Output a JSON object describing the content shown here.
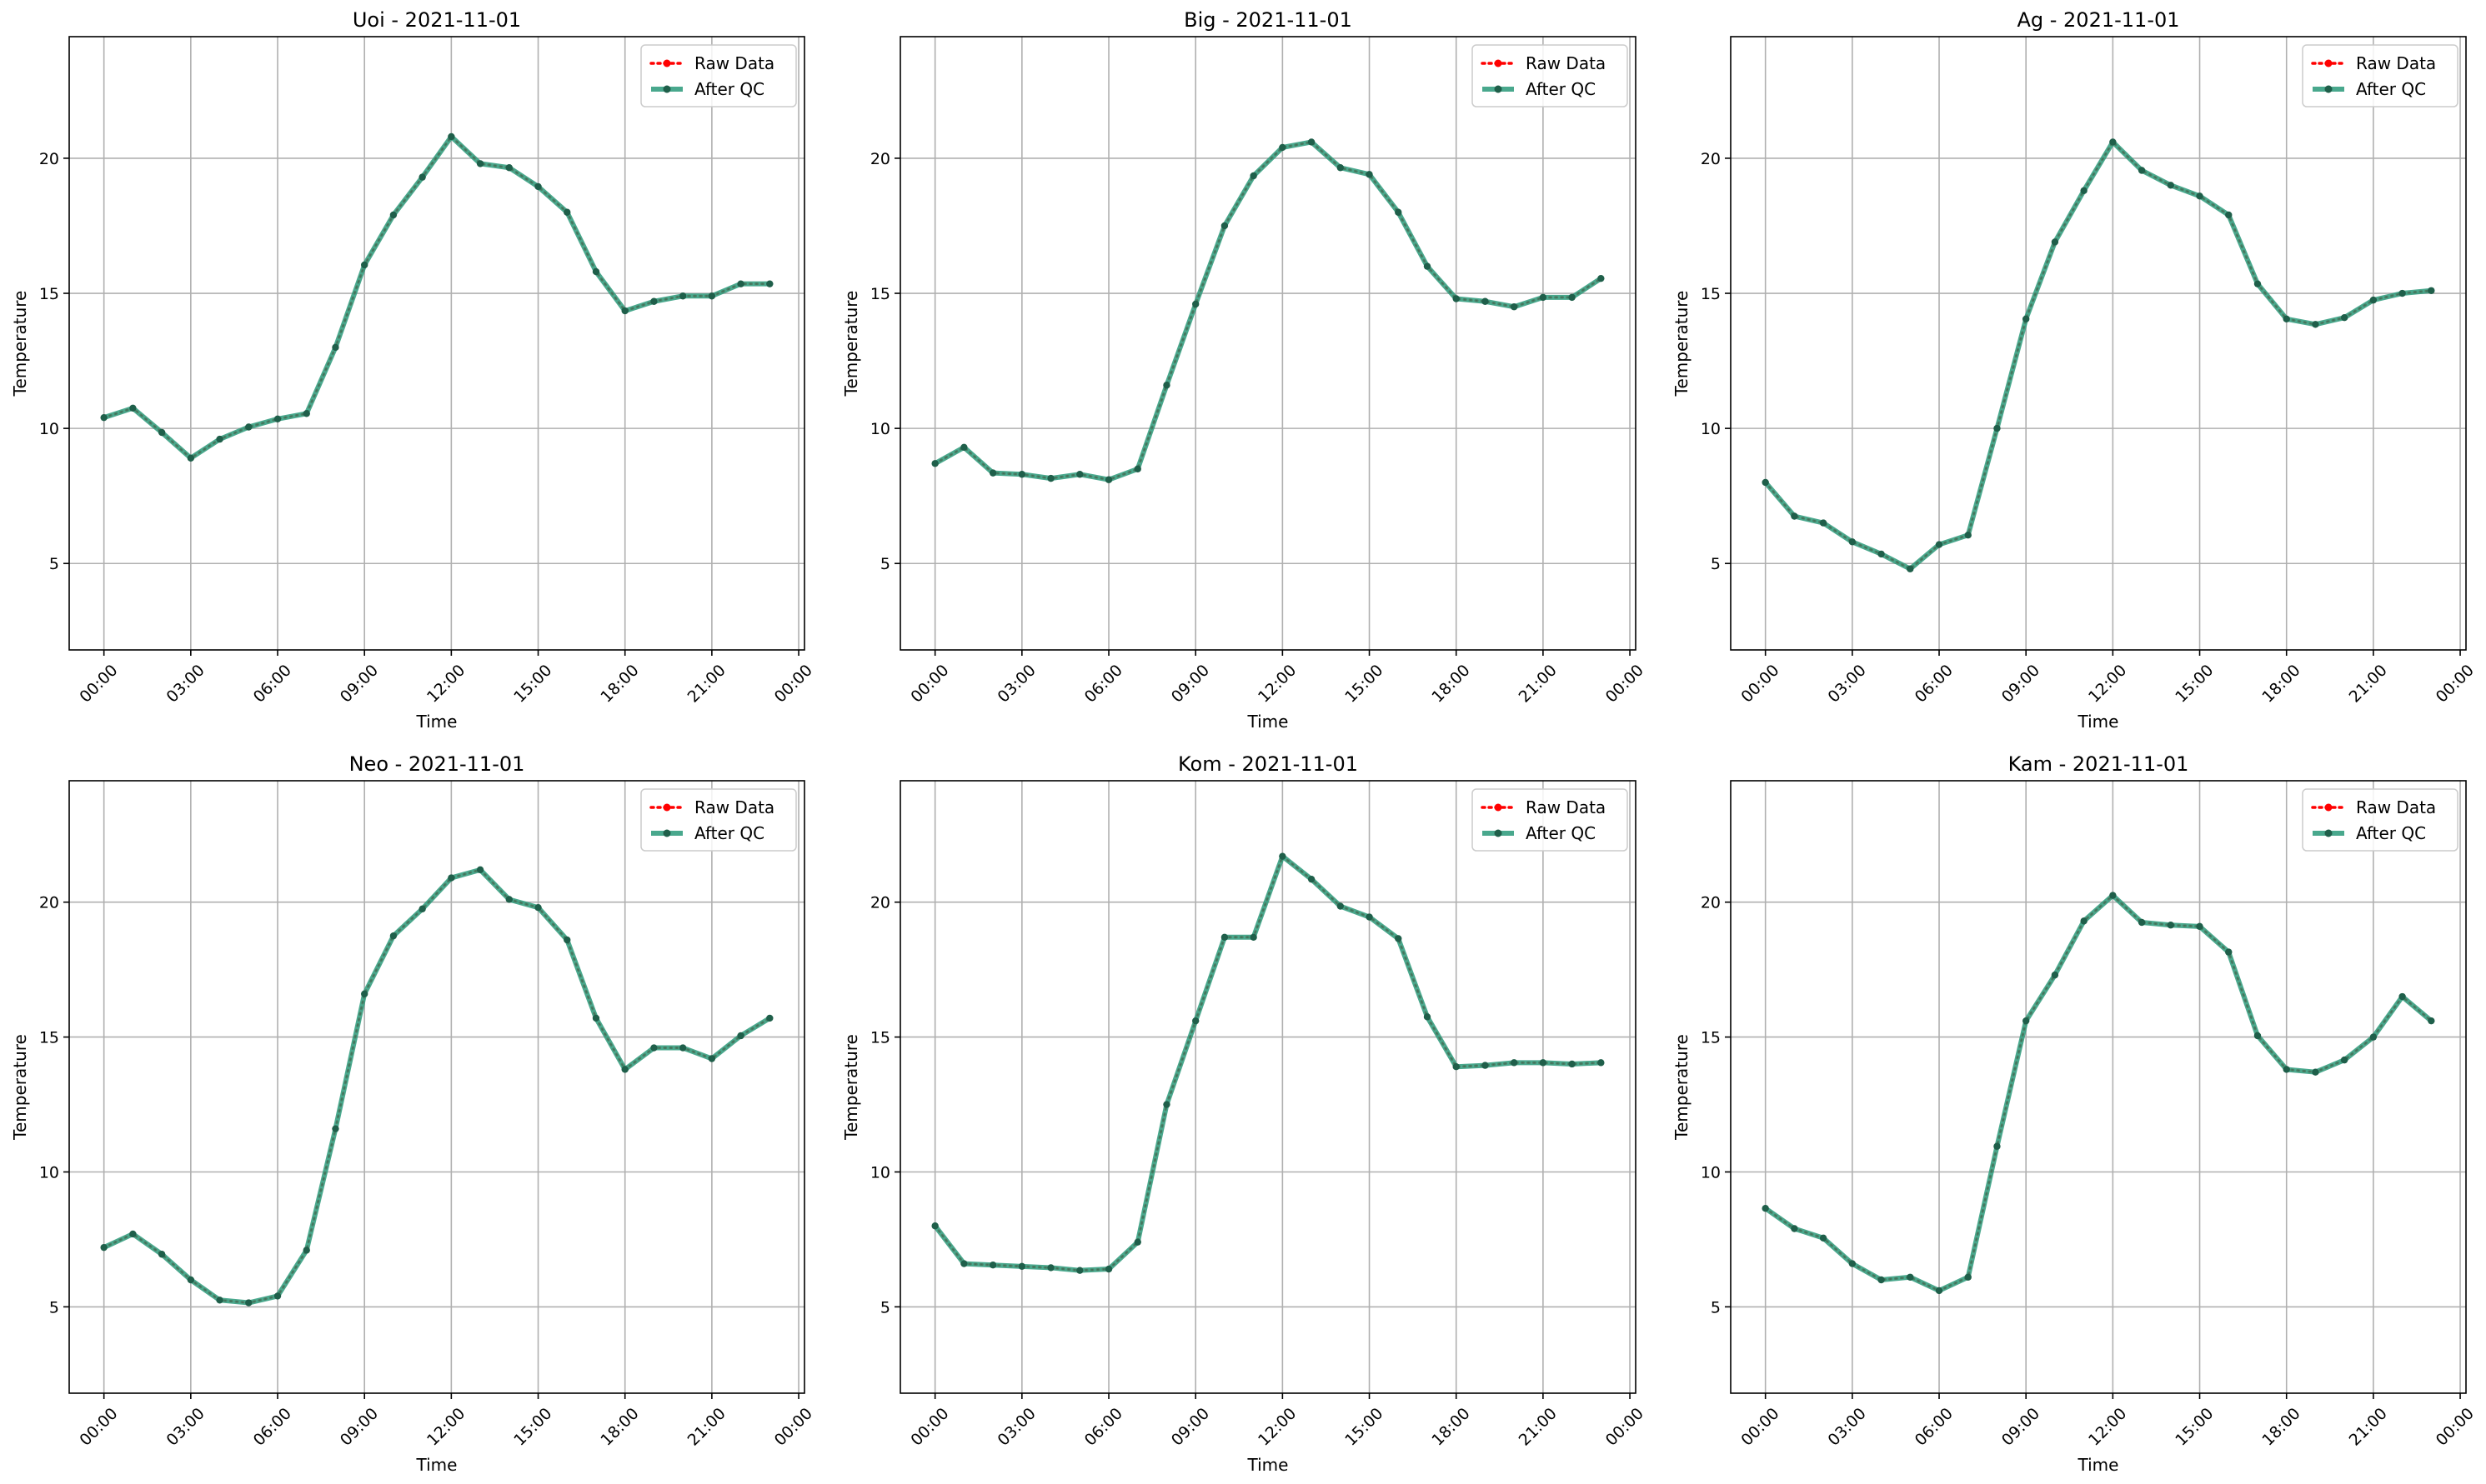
{
  "figure": {
    "colors": {
      "raw": "#ff0000",
      "qc": "#2a9a7a",
      "marker": "#1f5f4a",
      "grid": "#b0b0b0"
    }
  },
  "chart_data": [
    {
      "type": "line",
      "title": "Uoi - 2021-11-01",
      "xlabel": "Time",
      "ylabel": "Temperature",
      "xticks": [
        "00:00",
        "03:00",
        "06:00",
        "09:00",
        "12:00",
        "15:00",
        "18:00",
        "21:00",
        "00:00"
      ],
      "yticks": [
        5,
        10,
        15,
        20
      ],
      "ylim": [
        1.8,
        24.5
      ],
      "xlim": [
        -1.2,
        24.2
      ],
      "grid": true,
      "legend_position": "top-right",
      "legend": [
        "Raw Data",
        "After QC"
      ],
      "x": [
        0,
        1,
        2,
        3,
        4,
        5,
        6,
        7,
        8,
        9,
        10,
        11,
        12,
        13,
        14,
        15,
        16,
        17,
        18,
        19,
        20,
        21,
        22,
        23
      ],
      "series": [
        {
          "name": "Raw Data",
          "values": [
            10.4,
            10.75,
            9.85,
            8.9,
            9.6,
            10.05,
            10.35,
            10.55,
            13.0,
            16.05,
            17.9,
            19.3,
            20.8,
            19.8,
            19.65,
            18.95,
            18.0,
            15.8,
            14.35,
            14.7,
            14.9,
            14.9,
            15.35,
            15.35
          ]
        },
        {
          "name": "After QC",
          "values": [
            10.4,
            10.75,
            9.85,
            8.9,
            9.6,
            10.05,
            10.35,
            10.55,
            13.0,
            16.05,
            17.9,
            19.3,
            20.8,
            19.8,
            19.65,
            18.95,
            18.0,
            15.8,
            14.35,
            14.7,
            14.9,
            14.9,
            15.35,
            15.35
          ]
        }
      ]
    },
    {
      "type": "line",
      "title": "Big - 2021-11-01",
      "xlabel": "Time",
      "ylabel": "Temperature",
      "xticks": [
        "00:00",
        "03:00",
        "06:00",
        "09:00",
        "12:00",
        "15:00",
        "18:00",
        "21:00",
        "00:00"
      ],
      "yticks": [
        5,
        10,
        15,
        20
      ],
      "ylim": [
        1.8,
        24.5
      ],
      "xlim": [
        -1.2,
        24.2
      ],
      "grid": true,
      "legend_position": "top-right",
      "legend": [
        "Raw Data",
        "After QC"
      ],
      "x": [
        0,
        1,
        2,
        3,
        4,
        5,
        6,
        7,
        8,
        9,
        10,
        11,
        12,
        13,
        14,
        15,
        16,
        17,
        18,
        19,
        20,
        21,
        22,
        23
      ],
      "series": [
        {
          "name": "Raw Data",
          "values": [
            8.7,
            9.3,
            8.35,
            8.3,
            8.15,
            8.3,
            8.1,
            8.5,
            11.6,
            14.6,
            17.5,
            19.35,
            20.4,
            20.6,
            19.65,
            19.4,
            18.0,
            16.0,
            14.8,
            14.7,
            14.5,
            14.85,
            14.85,
            15.55
          ]
        },
        {
          "name": "After QC",
          "values": [
            8.7,
            9.3,
            8.35,
            8.3,
            8.15,
            8.3,
            8.1,
            8.5,
            11.6,
            14.6,
            17.5,
            19.35,
            20.4,
            20.6,
            19.65,
            19.4,
            18.0,
            16.0,
            14.8,
            14.7,
            14.5,
            14.85,
            14.85,
            15.55
          ]
        }
      ]
    },
    {
      "type": "line",
      "title": "Ag - 2021-11-01",
      "xlabel": "Time",
      "ylabel": "Temperature",
      "xticks": [
        "00:00",
        "03:00",
        "06:00",
        "09:00",
        "12:00",
        "15:00",
        "18:00",
        "21:00",
        "00:00"
      ],
      "yticks": [
        5,
        10,
        15,
        20
      ],
      "ylim": [
        1.8,
        24.5
      ],
      "xlim": [
        -1.2,
        24.2
      ],
      "grid": true,
      "legend_position": "top-right",
      "legend": [
        "Raw Data",
        "After QC"
      ],
      "x": [
        0,
        1,
        2,
        3,
        4,
        5,
        6,
        7,
        8,
        9,
        10,
        11,
        12,
        13,
        14,
        15,
        16,
        17,
        18,
        19,
        20,
        21,
        22,
        23
      ],
      "series": [
        {
          "name": "Raw Data",
          "values": [
            8.0,
            6.75,
            6.5,
            5.8,
            5.35,
            4.8,
            5.7,
            6.05,
            10.0,
            14.05,
            16.9,
            18.8,
            20.6,
            19.55,
            19.0,
            18.6,
            17.9,
            15.35,
            14.05,
            13.85,
            14.1,
            14.75,
            15.0,
            15.1
          ]
        },
        {
          "name": "After QC",
          "values": [
            8.0,
            6.75,
            6.5,
            5.8,
            5.35,
            4.8,
            5.7,
            6.05,
            10.0,
            14.05,
            16.9,
            18.8,
            20.6,
            19.55,
            19.0,
            18.6,
            17.9,
            15.35,
            14.05,
            13.85,
            14.1,
            14.75,
            15.0,
            15.1
          ]
        }
      ]
    },
    {
      "type": "line",
      "title": "Neo - 2021-11-01",
      "xlabel": "Time",
      "ylabel": "Temperature",
      "xticks": [
        "00:00",
        "03:00",
        "06:00",
        "09:00",
        "12:00",
        "15:00",
        "18:00",
        "21:00",
        "00:00"
      ],
      "yticks": [
        5,
        10,
        15,
        20
      ],
      "ylim": [
        1.8,
        24.5
      ],
      "xlim": [
        -1.2,
        24.2
      ],
      "grid": true,
      "legend_position": "top-right",
      "legend": [
        "Raw Data",
        "After QC"
      ],
      "x": [
        0,
        1,
        2,
        3,
        4,
        5,
        6,
        7,
        8,
        9,
        10,
        11,
        12,
        13,
        14,
        15,
        16,
        17,
        18,
        19,
        20,
        21,
        22,
        23
      ],
      "series": [
        {
          "name": "Raw Data",
          "values": [
            7.2,
            7.7,
            6.95,
            6.0,
            5.25,
            5.15,
            5.4,
            7.1,
            11.6,
            16.6,
            18.75,
            19.75,
            20.9,
            21.2,
            20.1,
            19.8,
            18.6,
            15.7,
            13.8,
            14.6,
            14.6,
            14.2,
            15.05,
            15.7
          ]
        },
        {
          "name": "After QC",
          "values": [
            7.2,
            7.7,
            6.95,
            6.0,
            5.25,
            5.15,
            5.4,
            7.1,
            11.6,
            16.6,
            18.75,
            19.75,
            20.9,
            21.2,
            20.1,
            19.8,
            18.6,
            15.7,
            13.8,
            14.6,
            14.6,
            14.2,
            15.05,
            15.7
          ]
        }
      ]
    },
    {
      "type": "line",
      "title": "Kom - 2021-11-01",
      "xlabel": "Time",
      "ylabel": "Temperature",
      "xticks": [
        "00:00",
        "03:00",
        "06:00",
        "09:00",
        "12:00",
        "15:00",
        "18:00",
        "21:00",
        "00:00"
      ],
      "yticks": [
        5,
        10,
        15,
        20
      ],
      "ylim": [
        1.8,
        24.5
      ],
      "xlim": [
        -1.2,
        24.2
      ],
      "grid": true,
      "legend_position": "top-right",
      "legend": [
        "Raw Data",
        "After QC"
      ],
      "x": [
        0,
        1,
        2,
        3,
        4,
        5,
        6,
        7,
        8,
        9,
        10,
        11,
        12,
        13,
        14,
        15,
        16,
        17,
        18,
        19,
        20,
        21,
        22,
        23
      ],
      "series": [
        {
          "name": "Raw Data",
          "values": [
            8.0,
            6.6,
            6.55,
            6.5,
            6.45,
            6.35,
            6.4,
            7.4,
            12.5,
            15.6,
            18.7,
            18.7,
            21.7,
            20.85,
            19.85,
            19.45,
            18.65,
            15.75,
            13.9,
            13.95,
            14.05,
            14.05,
            14.0,
            14.05
          ]
        },
        {
          "name": "After QC",
          "values": [
            8.0,
            6.6,
            6.55,
            6.5,
            6.45,
            6.35,
            6.4,
            7.4,
            12.5,
            15.6,
            18.7,
            18.7,
            21.7,
            20.85,
            19.85,
            19.45,
            18.65,
            15.75,
            13.9,
            13.95,
            14.05,
            14.05,
            14.0,
            14.05
          ]
        }
      ]
    },
    {
      "type": "line",
      "title": "Kam - 2021-11-01",
      "xlabel": "Time",
      "ylabel": "Temperature",
      "xticks": [
        "00:00",
        "03:00",
        "06:00",
        "09:00",
        "12:00",
        "15:00",
        "18:00",
        "21:00",
        "00:00"
      ],
      "yticks": [
        5,
        10,
        15,
        20
      ],
      "ylim": [
        1.8,
        24.5
      ],
      "xlim": [
        -1.2,
        24.2
      ],
      "grid": true,
      "legend_position": "top-right",
      "legend": [
        "Raw Data",
        "After QC"
      ],
      "x": [
        0,
        1,
        2,
        3,
        4,
        5,
        6,
        7,
        8,
        9,
        10,
        11,
        12,
        13,
        14,
        15,
        16,
        17,
        18,
        19,
        20,
        21,
        22,
        23
      ],
      "series": [
        {
          "name": "Raw Data",
          "values": [
            8.65,
            7.9,
            7.55,
            6.6,
            6.0,
            6.1,
            5.6,
            6.1,
            10.95,
            15.6,
            17.3,
            19.3,
            20.25,
            19.25,
            19.15,
            19.1,
            18.15,
            15.05,
            13.8,
            13.7,
            14.15,
            15.0,
            16.5,
            15.6
          ]
        },
        {
          "name": "After QC",
          "values": [
            8.65,
            7.9,
            7.55,
            6.6,
            6.0,
            6.1,
            5.6,
            6.1,
            10.95,
            15.6,
            17.3,
            19.3,
            20.25,
            19.25,
            19.15,
            19.1,
            18.15,
            15.05,
            13.8,
            13.7,
            14.15,
            15.0,
            16.5,
            15.6
          ]
        }
      ]
    }
  ]
}
